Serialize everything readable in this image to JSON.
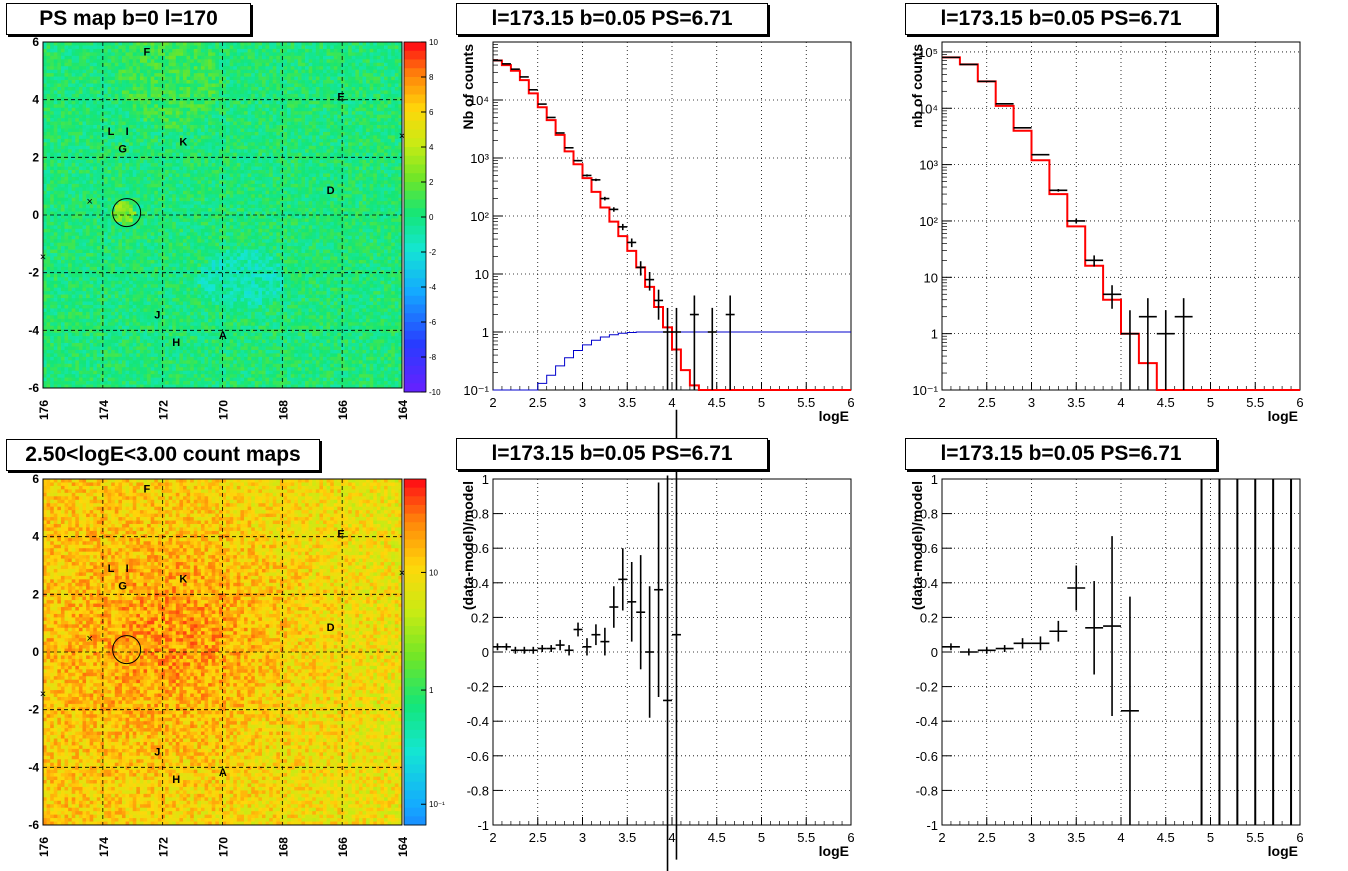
{
  "panels": {
    "ps_map_title": "PS map b=0 l=170",
    "count_map_title": "2.50<logE<3.00 count maps",
    "spectrum_title": "l=173.15 b=0.05 PS=6.71",
    "spectrum_title_2": "l=173.15 b=0.05 PS=6.71",
    "residual_title": "l=173.15 b=0.05 PS=6.71",
    "residual_title_2": "l=173.15 b=0.05 PS=6.71"
  },
  "maps": {
    "x_ticks": [
      "176",
      "174",
      "172",
      "170",
      "168",
      "166",
      "164"
    ],
    "y_ticks": [
      "6",
      "4",
      "2",
      "0",
      "-2",
      "-4",
      "-6"
    ],
    "source_labels": [
      "F",
      "E",
      "L",
      "I",
      "G",
      "K",
      "D",
      "J",
      "H",
      "A"
    ],
    "ps_colorbar_ticks": [
      "10",
      "8",
      "6",
      "4",
      "2",
      "0",
      "-2",
      "-4",
      "-6",
      "-8",
      "-10"
    ],
    "count_colorbar_ticks": [
      "10",
      "1",
      "10⁻¹"
    ]
  },
  "chart_data": [
    {
      "type": "line",
      "title": "l=173.15 b=0.05 PS=6.71",
      "xlabel": "logE",
      "ylabel": "Nb of counts",
      "xlim": [
        2,
        6
      ],
      "ylim": [
        0.1,
        100000
      ],
      "yscale": "log",
      "grid": true,
      "x_ticks": [
        "2",
        "2.5",
        "3",
        "3.5",
        "4",
        "4.5",
        "5",
        "5.5",
        "6"
      ],
      "y_ticks": [
        "10⁻¹",
        "1",
        "10",
        "10²",
        "10³",
        "10⁴"
      ],
      "series": [
        {
          "x": [
            2.05,
            2.15,
            2.25,
            2.35,
            2.45,
            2.55,
            2.65,
            2.75,
            2.85,
            2.95,
            3.05,
            3.15,
            3.25,
            3.35,
            3.45,
            3.55,
            3.65,
            3.75,
            3.85,
            3.95,
            4.05,
            4.25,
            4.45,
            4.65
          ],
          "values": [
            48000,
            42000,
            34000,
            25000,
            15000,
            8500,
            5000,
            2700,
            1500,
            900,
            500,
            420,
            200,
            130,
            65,
            35,
            13,
            8,
            3.5,
            1,
            1,
            2,
            1,
            2
          ]
        },
        {
          "x": [
            2.0,
            2.1,
            2.2,
            2.3,
            2.4,
            2.5,
            2.6,
            2.7,
            2.8,
            2.9,
            3.0,
            3.1,
            3.2,
            3.3,
            3.4,
            3.5,
            3.6,
            3.7,
            3.8,
            3.9,
            4.0,
            4.1,
            4.2,
            4.3,
            6.0
          ],
          "values": [
            48000,
            40000,
            32000,
            22000,
            13000,
            7500,
            4500,
            2500,
            1300,
            780,
            450,
            260,
            140,
            80,
            45,
            25,
            13,
            6,
            2.7,
            1.2,
            0.5,
            0.22,
            0.12,
            0.1,
            0.1
          ]
        },
        {
          "x": [
            2.0,
            2.1,
            2.2,
            2.3,
            2.4,
            2.5,
            2.6,
            2.7,
            2.8,
            2.9,
            3.0,
            3.1,
            3.2,
            3.3,
            3.4,
            3.5,
            3.6,
            3.7,
            3.8,
            3.9,
            4.0,
            6.0
          ],
          "values": [
            0.1,
            0.1,
            0.1,
            0.1,
            0.1,
            0.13,
            0.18,
            0.26,
            0.36,
            0.48,
            0.6,
            0.72,
            0.82,
            0.9,
            0.95,
            0.98,
            1,
            1,
            1,
            1,
            1,
            1
          ]
        }
      ]
    },
    {
      "type": "line",
      "title": "l=173.15 b=0.05 PS=6.71",
      "xlabel": "logE",
      "ylabel": "nb of counts",
      "xlim": [
        2,
        6
      ],
      "ylim": [
        0.1,
        150000
      ],
      "yscale": "log",
      "grid": true,
      "x_ticks": [
        "2",
        "2.5",
        "3",
        "3.5",
        "4",
        "4.5",
        "5",
        "5.5",
        "6"
      ],
      "y_ticks": [
        "10⁻¹",
        "1",
        "10",
        "10²",
        "10³",
        "10⁴",
        "10⁵"
      ],
      "series": [
        {
          "x": [
            2.1,
            2.3,
            2.5,
            2.7,
            2.9,
            3.1,
            3.3,
            3.5,
            3.7,
            3.9,
            4.1,
            4.3,
            4.5,
            4.7
          ],
          "values": [
            80000,
            60000,
            30000,
            12000,
            4500,
            1500,
            350,
            100,
            20,
            5,
            1,
            2,
            1,
            2
          ]
        },
        {
          "x": [
            2.0,
            2.2,
            2.4,
            2.6,
            2.8,
            3.0,
            3.2,
            3.4,
            3.6,
            3.8,
            4.0,
            4.2,
            4.4,
            6.0
          ],
          "values": [
            80000,
            60000,
            30000,
            11000,
            4000,
            1200,
            300,
            80,
            16,
            4,
            1,
            0.3,
            0.1,
            0.1
          ]
        }
      ]
    },
    {
      "type": "scatter",
      "title": "l=173.15 b=0.05 PS=6.71",
      "xlabel": "logE",
      "ylabel": "(data-model)/model",
      "xlim": [
        2,
        6
      ],
      "ylim": [
        -1,
        1
      ],
      "grid": true,
      "x_ticks": [
        "2",
        "2.5",
        "3",
        "3.5",
        "4",
        "4.5",
        "5",
        "5.5",
        "6"
      ],
      "y_ticks": [
        "-1",
        "-0.8",
        "-0.6",
        "-0.4",
        "-0.2",
        "0",
        "0.2",
        "0.4",
        "0.6",
        "0.8",
        "1"
      ],
      "series": [
        {
          "x": [
            2.05,
            2.15,
            2.25,
            2.35,
            2.45,
            2.55,
            2.65,
            2.75,
            2.85,
            2.95,
            3.05,
            3.15,
            3.25,
            3.35,
            3.45,
            3.55,
            3.65,
            3.75,
            3.85,
            3.95,
            4.05
          ],
          "values": [
            0.03,
            0.03,
            0.01,
            0.01,
            0.01,
            0.02,
            0.02,
            0.04,
            0.01,
            0.13,
            0.03,
            0.1,
            0.06,
            0.26,
            0.42,
            0.29,
            0.23,
            0.0,
            0.36,
            -0.28,
            0.1
          ],
          "errors": [
            0.02,
            0.02,
            0.02,
            0.02,
            0.02,
            0.02,
            0.02,
            0.03,
            0.03,
            0.04,
            0.05,
            0.06,
            0.08,
            0.12,
            0.18,
            0.23,
            0.33,
            0.38,
            0.62,
            1.3,
            1.3
          ]
        }
      ]
    },
    {
      "type": "scatter",
      "title": "l=173.15 b=0.05 PS=6.71",
      "xlabel": "logE",
      "ylabel": "(data-model)/model",
      "xlim": [
        2,
        6
      ],
      "ylim": [
        -1,
        1
      ],
      "grid": true,
      "x_ticks": [
        "2",
        "2.5",
        "3",
        "3.5",
        "4",
        "4.5",
        "5",
        "5.5",
        "6"
      ],
      "y_ticks": [
        "-1",
        "-0.8",
        "-0.6",
        "-0.4",
        "-0.2",
        "0",
        "0.2",
        "0.4",
        "0.6",
        "0.8",
        "1"
      ],
      "series": [
        {
          "x": [
            2.1,
            2.3,
            2.5,
            2.7,
            2.9,
            3.1,
            3.3,
            3.5,
            3.7,
            3.9,
            4.1,
            4.9,
            5.1,
            5.3,
            5.5,
            5.7,
            5.9
          ],
          "values": [
            0.03,
            0.0,
            0.01,
            0.02,
            0.05,
            0.05,
            0.12,
            0.37,
            0.14,
            0.15,
            -0.34,
            null,
            null,
            null,
            null,
            null,
            null
          ],
          "errors": [
            0.02,
            0.02,
            0.02,
            0.02,
            0.03,
            0.04,
            0.06,
            0.13,
            0.27,
            0.52,
            0.66,
            2,
            2,
            2,
            2,
            2,
            2
          ]
        }
      ]
    }
  ]
}
